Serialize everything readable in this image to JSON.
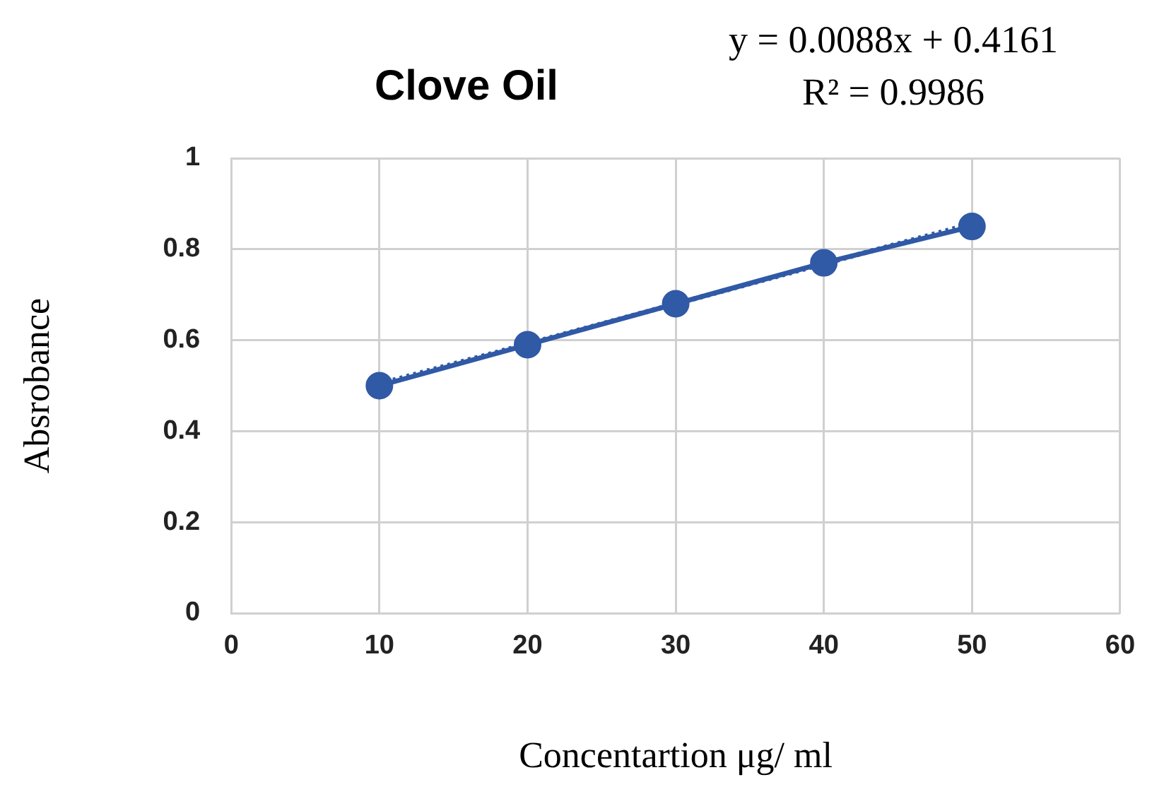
{
  "chart_data": {
    "type": "line",
    "title": "Clove Oil",
    "xlabel": "Concentartion μg/ ml",
    "ylabel": "Absrobance",
    "annotations": [
      "y = 0.0088x + 0.4161",
      "R² = 0.9986"
    ],
    "x": [
      10,
      20,
      30,
      40,
      50
    ],
    "series": [
      {
        "color": "#3059a6",
        "values": [
          0.5,
          0.59,
          0.68,
          0.77,
          0.85
        ],
        "marker": "circle",
        "line_style": "solid"
      },
      {
        "type": "line",
        "color": "#3059a6",
        "x": [
          10,
          50
        ],
        "values": [
          0.504,
          0.856
        ],
        "marker": "none",
        "line_style": "dotted"
      }
    ],
    "xlim": [
      0,
      60
    ],
    "xticks": [
      0,
      10,
      20,
      30,
      40,
      50,
      60
    ],
    "ylim": [
      0,
      1
    ],
    "yticks": [
      0,
      0.2,
      0.4,
      0.6,
      0.8,
      1
    ],
    "grid": true,
    "legend": false
  }
}
